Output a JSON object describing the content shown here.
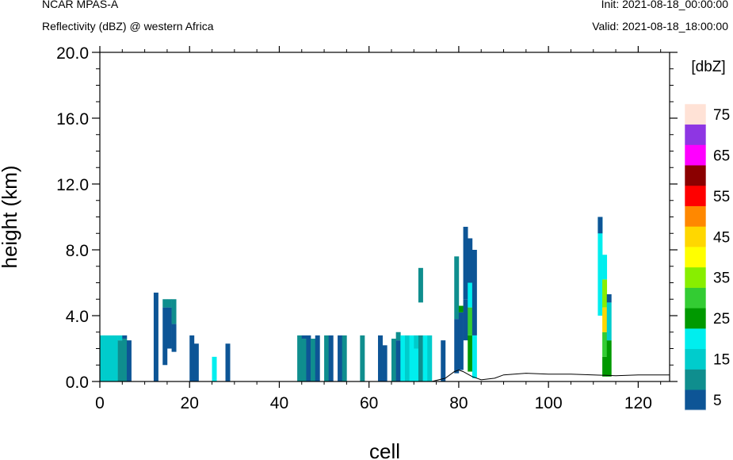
{
  "header": {
    "model": "NCAR MPAS-A",
    "field": "Reflectivity (dBZ) @ western Africa",
    "init": "Init: 2021-08-18_00:00:00",
    "valid": "Valid: 2021-08-18_18:00:00"
  },
  "chart_data": {
    "type": "heatmap",
    "title": "NCAR MPAS-A",
    "subtitle": "Reflectivity (dBZ) @ western Africa",
    "xlabel": "cell",
    "ylabel": "height (km)",
    "xlim": [
      0,
      127
    ],
    "ylim": [
      0,
      20
    ],
    "x_ticks": [
      "0",
      "20",
      "40",
      "60",
      "80",
      "100",
      "120"
    ],
    "y_ticks": [
      "0.0",
      "4.0",
      "8.0",
      "12.0",
      "16.0",
      "20.0"
    ],
    "colorbar": {
      "units": "[dbZ]",
      "labels": [
        "5",
        "15",
        "25",
        "35",
        "45",
        "55",
        "65",
        "75"
      ],
      "colors": [
        "#0d5596",
        "#0f8e8e",
        "#00cccc",
        "#00eeee",
        "#009900",
        "#33cc33",
        "#88ee00",
        "#ffff00",
        "#ffd700",
        "#ff8800",
        "#ff0000",
        "#8b0000",
        "#ff00ff",
        "#8e36e3",
        "#ffe2d6"
      ]
    },
    "columns": [
      {
        "x": 0,
        "segs": [
          [
            0,
            2.8,
            "#00cccc"
          ]
        ]
      },
      {
        "x": 1,
        "segs": [
          [
            0,
            2.8,
            "#00cccc"
          ]
        ]
      },
      {
        "x": 2,
        "segs": [
          [
            0,
            2.8,
            "#00cccc"
          ]
        ]
      },
      {
        "x": 3,
        "segs": [
          [
            0,
            2.8,
            "#00cccc"
          ]
        ]
      },
      {
        "x": 4,
        "segs": [
          [
            0,
            2.5,
            "#0f8e8e"
          ],
          [
            2.5,
            2.8,
            "#00cccc"
          ]
        ]
      },
      {
        "x": 5,
        "segs": [
          [
            0,
            2.6,
            "#0f8e8e"
          ],
          [
            2.6,
            2.8,
            "#0d5596"
          ]
        ]
      },
      {
        "x": 6,
        "segs": [
          [
            0,
            2.5,
            "#0d5596"
          ]
        ]
      },
      {
        "x": 12,
        "segs": [
          [
            0,
            5.4,
            "#0d5596"
          ]
        ]
      },
      {
        "x": 14,
        "segs": [
          [
            1.0,
            4.5,
            "#0d5596"
          ],
          [
            4.5,
            5.0,
            "#0f8e8e"
          ]
        ]
      },
      {
        "x": 15,
        "segs": [
          [
            2.0,
            4.5,
            "#0d5596"
          ],
          [
            4.5,
            5.0,
            "#0f8e8e"
          ]
        ]
      },
      {
        "x": 16,
        "segs": [
          [
            1.8,
            3.5,
            "#0d5596"
          ],
          [
            3.5,
            5.0,
            "#0f8e8e"
          ]
        ]
      },
      {
        "x": 20,
        "segs": [
          [
            0,
            2.8,
            "#0d5596"
          ]
        ]
      },
      {
        "x": 21,
        "segs": [
          [
            0,
            2.3,
            "#0d5596"
          ]
        ]
      },
      {
        "x": 25,
        "segs": [
          [
            0,
            1.5,
            "#00eeee"
          ]
        ]
      },
      {
        "x": 28,
        "segs": [
          [
            0,
            2.3,
            "#0d5596"
          ]
        ]
      },
      {
        "x": 44,
        "segs": [
          [
            0,
            2.8,
            "#0f8e8e"
          ]
        ]
      },
      {
        "x": 45,
        "segs": [
          [
            0,
            2.6,
            "#0f8e8e"
          ],
          [
            2.6,
            2.8,
            "#0d5596"
          ]
        ]
      },
      {
        "x": 46,
        "segs": [
          [
            0,
            2.8,
            "#0d5596"
          ]
        ]
      },
      {
        "x": 47,
        "segs": [
          [
            0,
            2.6,
            "#0f8e8e"
          ]
        ]
      },
      {
        "x": 48,
        "segs": [
          [
            0,
            2.8,
            "#0d5596"
          ]
        ]
      },
      {
        "x": 50,
        "segs": [
          [
            0,
            2.8,
            "#0f8e8e"
          ]
        ]
      },
      {
        "x": 51,
        "segs": [
          [
            0,
            2.8,
            "#0d5596"
          ]
        ]
      },
      {
        "x": 53,
        "segs": [
          [
            0,
            2.8,
            "#0d5596"
          ]
        ]
      },
      {
        "x": 54,
        "segs": [
          [
            0,
            2.8,
            "#0f8e8e"
          ]
        ]
      },
      {
        "x": 58,
        "segs": [
          [
            0,
            2.8,
            "#0f8e8e"
          ]
        ]
      },
      {
        "x": 62,
        "segs": [
          [
            0,
            2.8,
            "#0d5596"
          ]
        ]
      },
      {
        "x": 63,
        "segs": [
          [
            0,
            2.2,
            "#0d5596"
          ]
        ]
      },
      {
        "x": 65,
        "segs": [
          [
            0,
            2.6,
            "#0f8e8e"
          ]
        ]
      },
      {
        "x": 66,
        "segs": [
          [
            0,
            2.5,
            "#0d5596"
          ],
          [
            2.5,
            3.0,
            "#0f8e8e"
          ]
        ]
      },
      {
        "x": 67,
        "segs": [
          [
            0,
            2.8,
            "#00eeee"
          ]
        ]
      },
      {
        "x": 68,
        "segs": [
          [
            0,
            2.8,
            "#00cccc"
          ]
        ]
      },
      {
        "x": 69,
        "segs": [
          [
            0,
            2.8,
            "#00eeee"
          ]
        ]
      },
      {
        "x": 70,
        "segs": [
          [
            0,
            2.0,
            "#00eeee"
          ],
          [
            2.0,
            2.8,
            "#00cccc"
          ]
        ]
      },
      {
        "x": 71,
        "segs": [
          [
            0,
            2.8,
            "#0f8e8e"
          ],
          [
            4.8,
            6.9,
            "#0f8e8e"
          ]
        ]
      },
      {
        "x": 72,
        "segs": [
          [
            0,
            2.8,
            "#00eeee"
          ]
        ]
      },
      {
        "x": 73,
        "segs": [
          [
            0,
            2.8,
            "#00cccc"
          ]
        ]
      },
      {
        "x": 76,
        "segs": [
          [
            0,
            2.5,
            "#0d5596"
          ]
        ]
      },
      {
        "x": 79,
        "segs": [
          [
            0.5,
            3.8,
            "#0d5596"
          ],
          [
            3.8,
            7.6,
            "#0f8e8e"
          ]
        ]
      },
      {
        "x": 80,
        "segs": [
          [
            0.7,
            4.2,
            "#0d5596"
          ],
          [
            4.2,
            4.6,
            "#009900"
          ]
        ]
      },
      {
        "x": 81,
        "segs": [
          [
            2.5,
            5.0,
            "#0d5596"
          ],
          [
            5.0,
            9.4,
            "#0d5596"
          ]
        ]
      },
      {
        "x": 82,
        "segs": [
          [
            0.6,
            2.8,
            "#009900"
          ],
          [
            2.8,
            4.5,
            "#33cc33"
          ],
          [
            4.5,
            6.0,
            "#00eeee"
          ],
          [
            6.0,
            8.7,
            "#0d5596"
          ]
        ]
      },
      {
        "x": 83,
        "segs": [
          [
            0.2,
            2.8,
            "#00eeee"
          ],
          [
            2.8,
            8.0,
            "#0d5596"
          ]
        ]
      },
      {
        "x": 111,
        "segs": [
          [
            4.0,
            10.0,
            "#00eeee"
          ],
          [
            9.0,
            10.0,
            "#0d5596"
          ]
        ]
      },
      {
        "x": 112,
        "segs": [
          [
            0.3,
            1.5,
            "#009900"
          ],
          [
            1.5,
            3.0,
            "#33cc33"
          ],
          [
            3.0,
            4.5,
            "#ffd700"
          ],
          [
            4.5,
            6.2,
            "#88ee00"
          ],
          [
            6.2,
            7.7,
            "#00eeee"
          ]
        ]
      },
      {
        "x": 113,
        "segs": [
          [
            0.3,
            2.5,
            "#009900"
          ],
          [
            2.5,
            4.8,
            "#00cccc"
          ],
          [
            4.8,
            5.3,
            "#0d5596"
          ]
        ]
      }
    ],
    "terrain": [
      [
        0,
        0
      ],
      [
        74,
        0
      ],
      [
        77,
        0.2
      ],
      [
        79,
        0.6
      ],
      [
        80,
        0.7
      ],
      [
        81,
        0.6
      ],
      [
        83,
        0.3
      ],
      [
        85,
        0.1
      ],
      [
        88,
        0.2
      ],
      [
        90,
        0.4
      ],
      [
        95,
        0.5
      ],
      [
        100,
        0.45
      ],
      [
        105,
        0.45
      ],
      [
        110,
        0.4
      ],
      [
        115,
        0.35
      ],
      [
        120,
        0.4
      ],
      [
        127,
        0.4
      ]
    ]
  }
}
